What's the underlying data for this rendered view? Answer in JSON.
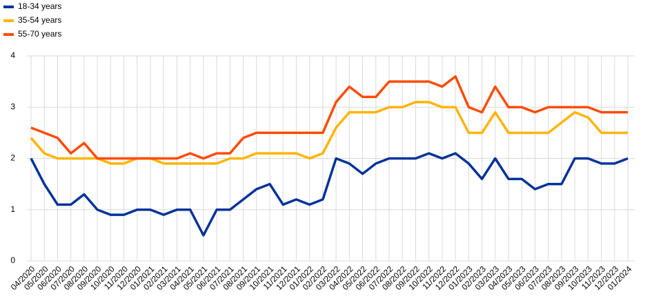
{
  "chart_data": {
    "type": "line",
    "categories": [
      "04/2020",
      "05/2020",
      "06/2020",
      "07/2020",
      "08/2020",
      "09/2020",
      "10/2020",
      "11/2020",
      "12/2020",
      "01/2021",
      "02/2021",
      "03/2021",
      "04/2021",
      "05/2021",
      "06/2021",
      "07/2021",
      "08/2021",
      "09/2021",
      "10/2021",
      "11/2021",
      "12/2021",
      "01/2022",
      "02/2022",
      "03/2022",
      "04/2022",
      "05/2022",
      "06/2022",
      "07/2022",
      "08/2022",
      "09/2022",
      "10/2022",
      "11/2022",
      "12/2022",
      "01/2023",
      "02/2023",
      "03/2023",
      "04/2023",
      "05/2023",
      "06/2023",
      "07/2023",
      "08/2023",
      "09/2023",
      "10/2023",
      "11/2023",
      "12/2023",
      "01/2024"
    ],
    "series": [
      {
        "name": "18-34 years",
        "color": "#003299",
        "values": [
          2.0,
          1.5,
          1.1,
          1.1,
          1.3,
          1.0,
          0.9,
          0.9,
          1.0,
          1.0,
          0.9,
          1.0,
          1.0,
          0.5,
          1.0,
          1.0,
          1.2,
          1.4,
          1.5,
          1.1,
          1.2,
          1.1,
          1.2,
          2.0,
          1.9,
          1.7,
          1.9,
          2.0,
          2.0,
          2.0,
          2.1,
          2.0,
          2.1,
          1.9,
          1.6,
          2.0,
          1.6,
          1.6,
          1.4,
          1.5,
          1.5,
          2.0,
          2.0,
          1.9,
          1.9,
          2.0
        ]
      },
      {
        "name": "35-54 years",
        "color": "#ffb400",
        "values": [
          2.4,
          2.1,
          2.0,
          2.0,
          2.0,
          2.0,
          1.9,
          1.9,
          2.0,
          2.0,
          1.9,
          1.9,
          1.9,
          1.9,
          1.9,
          2.0,
          2.0,
          2.1,
          2.1,
          2.1,
          2.1,
          2.0,
          2.1,
          2.6,
          2.9,
          2.9,
          2.9,
          3.0,
          3.0,
          3.1,
          3.1,
          3.0,
          3.0,
          2.5,
          2.5,
          2.9,
          2.5,
          2.5,
          2.5,
          2.5,
          2.7,
          2.9,
          2.8,
          2.5,
          2.5,
          2.5
        ]
      },
      {
        "name": "55-70 years",
        "color": "#ff4b00",
        "values": [
          2.6,
          2.5,
          2.4,
          2.1,
          2.3,
          2.0,
          2.0,
          2.0,
          2.0,
          2.0,
          2.0,
          2.0,
          2.1,
          2.0,
          2.1,
          2.1,
          2.4,
          2.5,
          2.5,
          2.5,
          2.5,
          2.5,
          2.5,
          3.1,
          3.4,
          3.2,
          3.2,
          3.5,
          3.5,
          3.5,
          3.5,
          3.4,
          3.6,
          3.0,
          2.9,
          3.4,
          3.0,
          3.0,
          2.9,
          3.0,
          3.0,
          3.0,
          3.0,
          2.9,
          2.9,
          2.9
        ]
      }
    ],
    "ylim": [
      0,
      4
    ],
    "yticks": [
      0,
      1,
      2,
      3,
      4
    ],
    "grid": true,
    "legend": "top-left"
  }
}
